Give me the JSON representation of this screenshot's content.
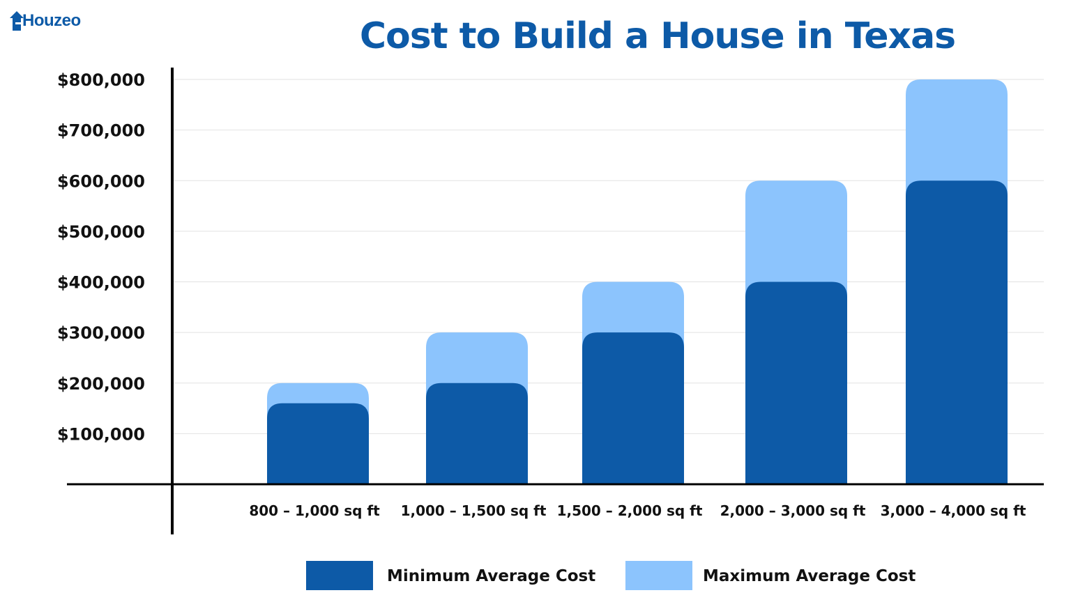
{
  "logo": {
    "text": "Houzeo"
  },
  "chart_data": {
    "type": "bar",
    "title": "Cost to Build a House in Texas",
    "categories": [
      "800 – 1,000 sq ft",
      "1,000 – 1,500 sq ft",
      "1,500 – 2,000 sq ft",
      "2,000 – 3,000 sq ft",
      "3,000 – 4,000 sq ft"
    ],
    "series": [
      {
        "name": "Minimum Average Cost",
        "color": "#0d5aa7",
        "values": [
          160000,
          200000,
          300000,
          400000,
          600000
        ]
      },
      {
        "name": "Maximum Average Cost",
        "color": "#8cc4fd",
        "values": [
          200000,
          300000,
          400000,
          600000,
          800000
        ]
      }
    ],
    "ylim": [
      0,
      800000
    ],
    "yticks": [
      "$100,000",
      "$200,000",
      "$300,000",
      "$400,000",
      "$500,000",
      "$600,000",
      "$700,000",
      "$800,000"
    ],
    "grid": true,
    "legend": "bottom"
  }
}
